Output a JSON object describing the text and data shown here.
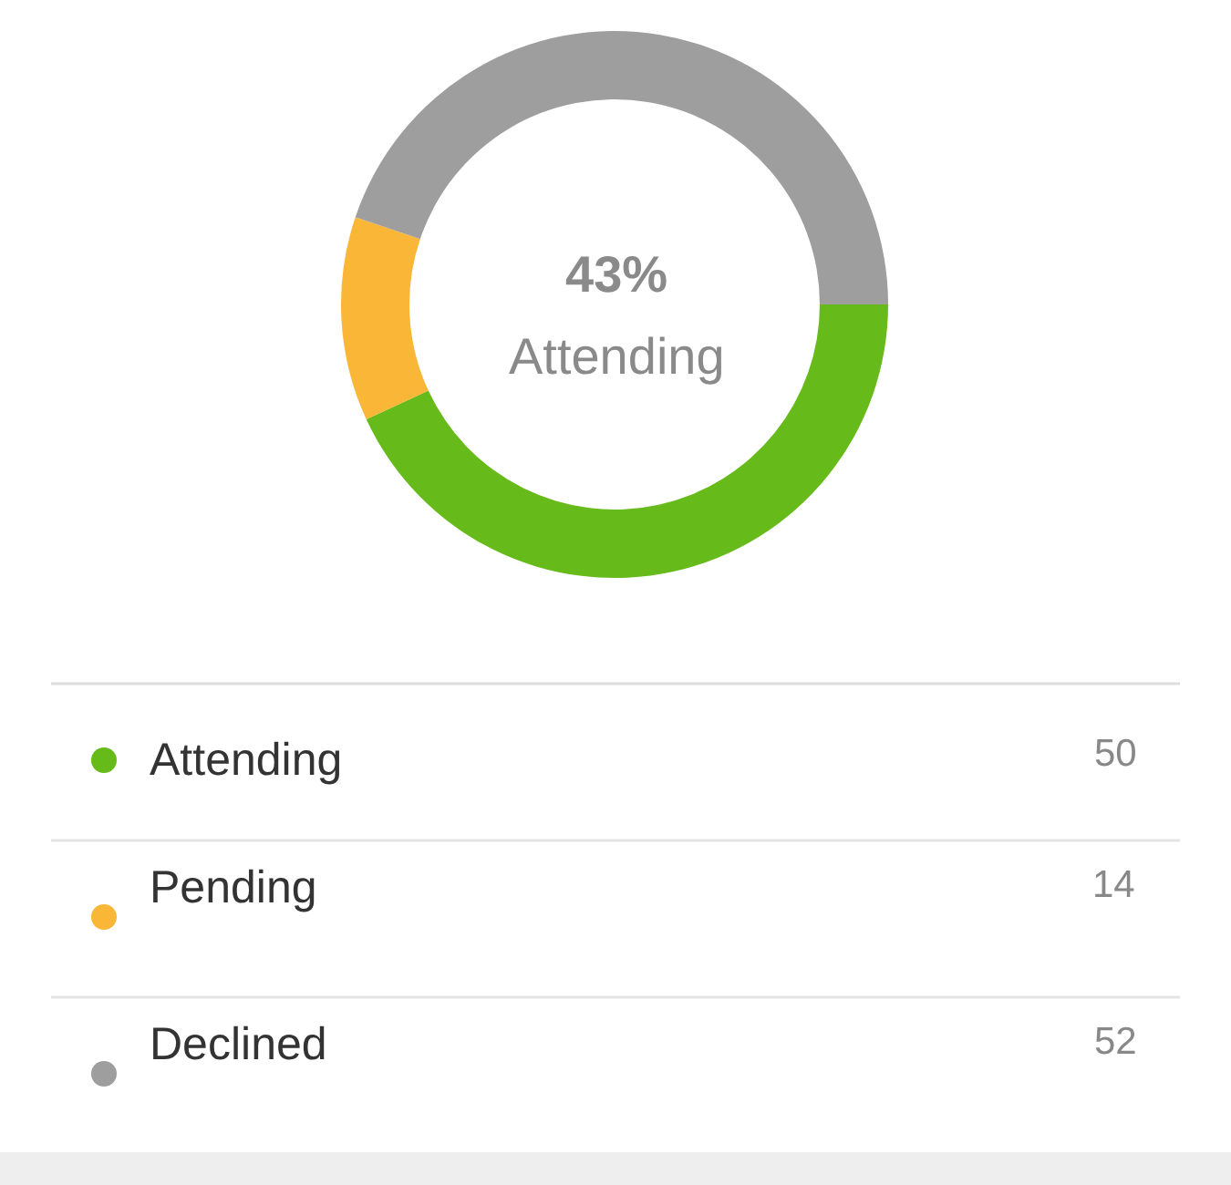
{
  "chart_data": {
    "type": "donut",
    "categories": [
      "Attending",
      "Pending",
      "Declined"
    ],
    "values": [
      50,
      14,
      52
    ],
    "colors": [
      "#66bb1a",
      "#f9b637",
      "#9e9e9e"
    ],
    "annotations": [
      "43%",
      "Attending"
    ],
    "data_labels": true,
    "legend": "bottom"
  }
}
